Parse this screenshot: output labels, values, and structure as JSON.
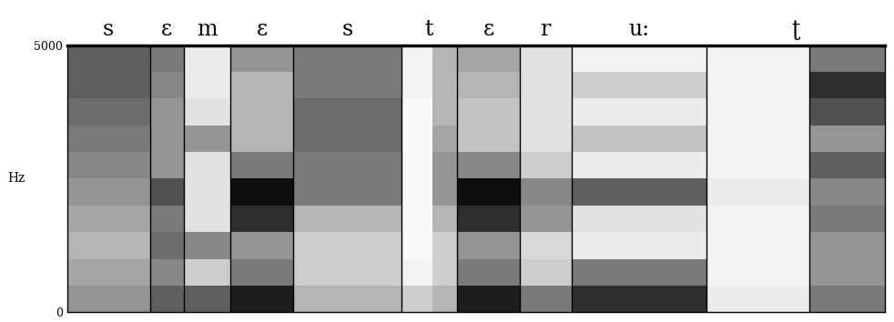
{
  "chart_data": {
    "type": "spectrogram",
    "ylabel": "Hz",
    "xlim": [
      0,
      918
    ],
    "ylim": [
      0,
      5000
    ],
    "yticks": [
      0,
      5000
    ],
    "tick_labels": "y",
    "color": "#000000",
    "segments": [
      {
        "label": "s",
        "start": 0,
        "end": 93
      },
      {
        "label": "ɛ",
        "start": 93,
        "end": 131
      },
      {
        "label": "m",
        "start": 131,
        "end": 183
      },
      {
        "label": "ɛ",
        "start": 183,
        "end": 254
      },
      {
        "label": "s",
        "start": 254,
        "end": 375
      },
      {
        "label": "t",
        "start": 375,
        "end": 438
      },
      {
        "label": "ɛ",
        "start": 438,
        "end": 508
      },
      {
        "label": "r",
        "start": 508,
        "end": 566
      },
      {
        "label": "u:",
        "start": 566,
        "end": 718
      },
      {
        "label": "ʈ",
        "start": 718,
        "end": 918
      }
    ],
    "boundaries": [
      93,
      131,
      183,
      254,
      375,
      438,
      508,
      566,
      718,
      833
    ],
    "time_edges": [
      0,
      93,
      131,
      183,
      254,
      375,
      410,
      438,
      508,
      566,
      718,
      833,
      918
    ],
    "frequency_edges": [
      0,
      500,
      1000,
      1500,
      2000,
      2500,
      3000,
      3500,
      4000,
      4500,
      5000
    ],
    "value_range": [
      0,
      1
    ],
    "cells": [
      [
        0.5,
        0.45,
        0.4,
        0.45,
        0.5,
        0.55,
        0.6,
        0.65,
        0.7,
        0.7
      ],
      [
        0.7,
        0.55,
        0.65,
        0.6,
        0.75,
        0.5,
        0.5,
        0.5,
        0.55,
        0.6
      ],
      [
        0.7,
        0.3,
        0.55,
        0.2,
        0.2,
        0.2,
        0.5,
        0.2,
        0.15,
        0.15
      ],
      [
        0.9,
        0.6,
        0.5,
        0.85,
        0.95,
        0.6,
        0.4,
        0.4,
        0.4,
        0.5
      ],
      [
        0.4,
        0.3,
        0.3,
        0.4,
        0.6,
        0.6,
        0.65,
        0.65,
        0.6,
        0.6
      ],
      [
        0.3,
        0.1,
        0.05,
        0.05,
        0.05,
        0.05,
        0.05,
        0.05,
        0.1,
        0.1
      ],
      [
        0.4,
        0.3,
        0.3,
        0.4,
        0.5,
        0.5,
        0.45,
        0.4,
        0.4,
        0.4
      ],
      [
        0.9,
        0.6,
        0.5,
        0.85,
        0.95,
        0.55,
        0.35,
        0.35,
        0.4,
        0.45
      ],
      [
        0.6,
        0.3,
        0.25,
        0.5,
        0.55,
        0.3,
        0.2,
        0.2,
        0.2,
        0.2
      ],
      [
        0.85,
        0.6,
        0.15,
        0.2,
        0.7,
        0.15,
        0.35,
        0.15,
        0.3,
        0.1
      ],
      [
        0.15,
        0.1,
        0.1,
        0.1,
        0.15,
        0.1,
        0.1,
        0.1,
        0.1,
        0.1
      ],
      [
        0.6,
        0.5,
        0.5,
        0.6,
        0.55,
        0.7,
        0.5,
        0.75,
        0.85,
        0.6
      ]
    ]
  }
}
